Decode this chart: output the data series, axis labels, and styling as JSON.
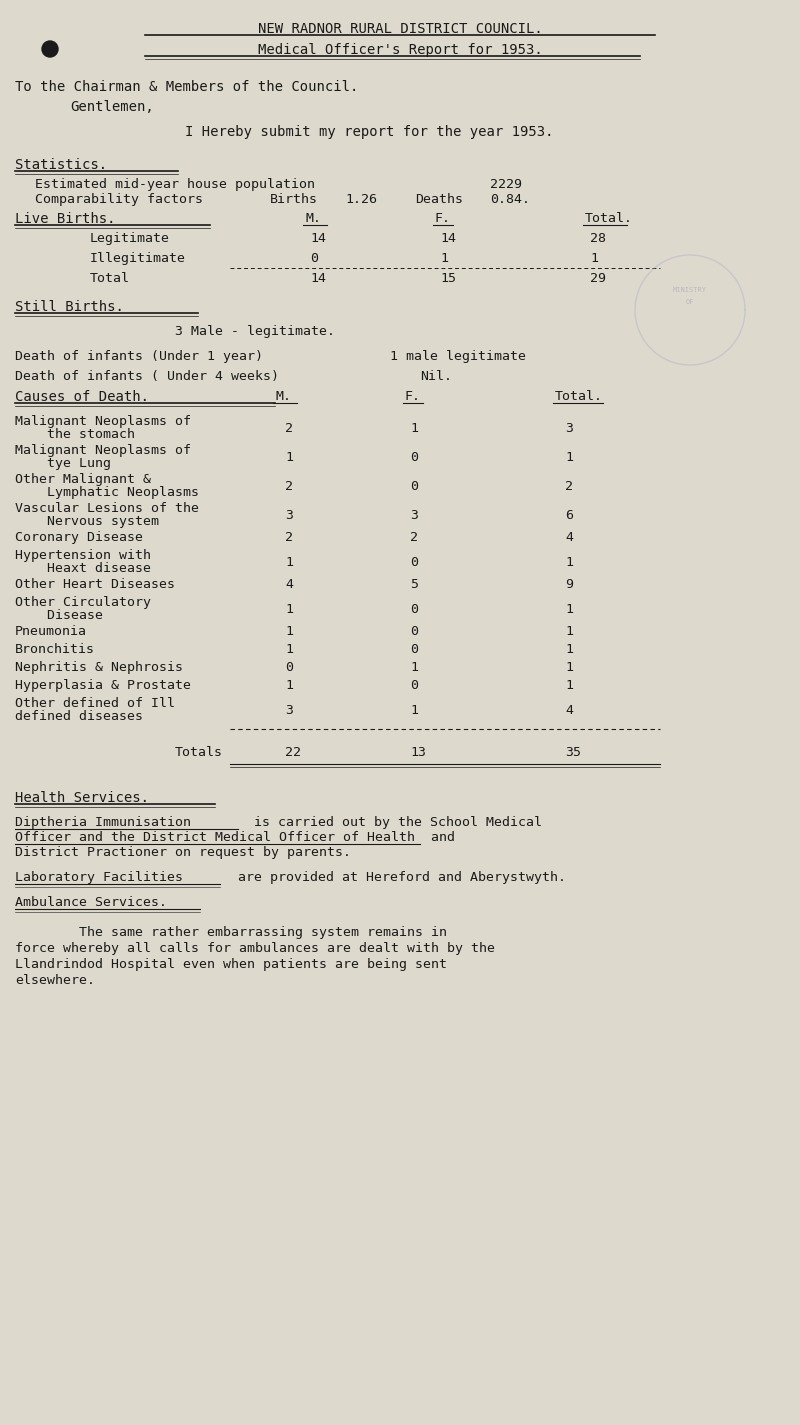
{
  "bg_color": "#ddd9cc",
  "text_color": "#1a1a1a",
  "title1": "NEW RADNOR RURAL DISTRICT COUNCIL.",
  "title2": "Medical Officer's Report for 1953.",
  "live_births_rows": [
    [
      "Legitimate",
      "14",
      "14",
      "28"
    ],
    [
      "Illegitimate",
      "0",
      "1",
      "1"
    ],
    [
      "Total",
      "14",
      "15",
      "29"
    ]
  ],
  "causes_rows": [
    [
      "Malignant Neoplasms of\n    the stomach",
      "2",
      "1",
      "3"
    ],
    [
      "Malignant Neoplasms of\n    tye Lung",
      "1",
      "0",
      "1"
    ],
    [
      "Other Malignant &\n    Lymphatic Neoplasms",
      "2",
      "0",
      "2"
    ],
    [
      "Vascular Lesions of the\n    Nervous system",
      "3",
      "3",
      "6"
    ],
    [
      "Coronary Disease",
      "2",
      "2",
      "4"
    ],
    [
      "Hypertension with\n    Heaxt disease",
      "1",
      "0",
      "1"
    ],
    [
      "Other Heart Diseases",
      "4",
      "5",
      "9"
    ],
    [
      "Other Circulatory\n    Disease",
      "1",
      "0",
      "1"
    ],
    [
      "Pneumonia",
      "1",
      "0",
      "1"
    ],
    [
      "Bronchitis",
      "1",
      "0",
      "1"
    ],
    [
      "Nephritis & Nephrosis",
      "0",
      "1",
      "1"
    ],
    [
      "Hyperplasia & Prostate",
      "1",
      "0",
      "1"
    ],
    [
      "Other defined of Ill\ndefined diseases",
      "3",
      "1",
      "4"
    ]
  ],
  "totals_row": [
    "Totals",
    "22",
    "13",
    "35"
  ]
}
